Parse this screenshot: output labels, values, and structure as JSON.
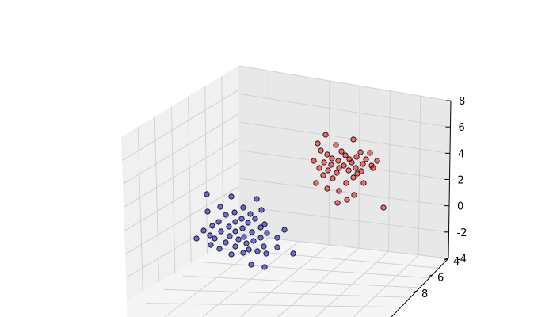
{
  "chart_data": {
    "type": "scatter",
    "title": "",
    "xlabel": "",
    "ylabel": "",
    "zlabel": "",
    "grid": true,
    "colors": {
      "pane_left": "#f0f0f0",
      "pane_back": "#e8e8e8",
      "pane_floor": "#f5f5f5",
      "grid": "#d2d2d2",
      "edge": "#000000"
    },
    "z_ticks": [
      -4,
      -2,
      0,
      2,
      4,
      6,
      8
    ],
    "y_ticks": [
      4,
      6,
      8
    ],
    "series": [
      {
        "color": "#ff0000",
        "points": [
          [
            411,
            170
          ],
          [
            446,
            176
          ],
          [
            401,
            181
          ],
          [
            424,
            183
          ],
          [
            405,
            190
          ],
          [
            431,
            191
          ],
          [
            455,
            192
          ],
          [
            467,
            193
          ],
          [
            413,
            195
          ],
          [
            436,
            196
          ],
          [
            450,
            198
          ],
          [
            419,
            200
          ],
          [
            441,
            201
          ],
          [
            462,
            201
          ],
          [
            396,
            203
          ],
          [
            427,
            203
          ],
          [
            476,
            203
          ],
          [
            409,
            205
          ],
          [
            444,
            205
          ],
          [
            458,
            207
          ],
          [
            418,
            208
          ],
          [
            434,
            209
          ],
          [
            469,
            209
          ],
          [
            403,
            212
          ],
          [
            428,
            212
          ],
          [
            449,
            212
          ],
          [
            471,
            212
          ],
          [
            414,
            215
          ],
          [
            440,
            215
          ],
          [
            456,
            216
          ],
          [
            425,
            218
          ],
          [
            451,
            219
          ],
          [
            408,
            221
          ],
          [
            446,
            224
          ],
          [
            420,
            225
          ],
          [
            399,
            231
          ],
          [
            437,
            231
          ],
          [
            459,
            231
          ],
          [
            413,
            238
          ],
          [
            428,
            241
          ],
          [
            447,
            246
          ],
          [
            438,
            252
          ],
          [
            426,
            256
          ],
          [
            484,
            262
          ]
        ]
      },
      {
        "color": "#0000cc",
        "points": [
          [
            261,
            245
          ],
          [
            292,
            248
          ],
          [
            324,
            251
          ],
          [
            278,
            261
          ],
          [
            307,
            262
          ],
          [
            330,
            265
          ],
          [
            262,
            267
          ],
          [
            296,
            268
          ],
          [
            316,
            270
          ],
          [
            285,
            271
          ],
          [
            305,
            276
          ],
          [
            322,
            276
          ],
          [
            276,
            280
          ],
          [
            297,
            280
          ],
          [
            313,
            281
          ],
          [
            334,
            283
          ],
          [
            268,
            285
          ],
          [
            289,
            286
          ],
          [
            329,
            287
          ],
          [
            306,
            288
          ],
          [
            359,
            290
          ],
          [
            257,
            291
          ],
          [
            279,
            292
          ],
          [
            297,
            292
          ],
          [
            318,
            293
          ],
          [
            337,
            294
          ],
          [
            265,
            297
          ],
          [
            290,
            298
          ],
          [
            308,
            299
          ],
          [
            329,
            300
          ],
          [
            350,
            300
          ],
          [
            248,
            301
          ],
          [
            271,
            301
          ],
          [
            301,
            302
          ],
          [
            320,
            304
          ],
          [
            285,
            306
          ],
          [
            311,
            307
          ],
          [
            266,
            309
          ],
          [
            297,
            311
          ],
          [
            333,
            311
          ],
          [
            350,
            312
          ],
          [
            277,
            314
          ],
          [
            314,
            315
          ],
          [
            325,
            317
          ],
          [
            307,
            319
          ],
          [
            336,
            320
          ],
          [
            292,
            321
          ],
          [
            370,
            320
          ],
          [
            317,
            334
          ],
          [
            334,
            337
          ]
        ]
      }
    ]
  }
}
